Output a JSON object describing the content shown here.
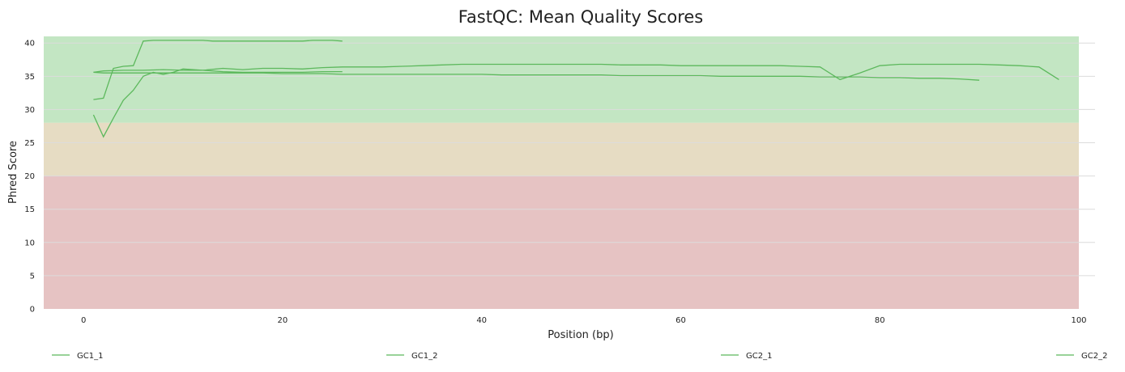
{
  "chart_data": {
    "type": "line",
    "title": "FastQC: Mean Quality Scores",
    "xlabel": "Position (bp)",
    "ylabel": "Phred Score",
    "xlim": [
      -4,
      100
    ],
    "ylim": [
      0,
      41
    ],
    "xticks": [
      0,
      20,
      40,
      60,
      80,
      100
    ],
    "yticks": [
      0,
      5,
      10,
      15,
      20,
      25,
      30,
      35,
      40
    ],
    "grid": true,
    "legend_position": "bottom",
    "line_color": "#5cb85c",
    "quality_bands": [
      {
        "from": 28,
        "to": 41,
        "color": "#c3e6c3"
      },
      {
        "from": 20,
        "to": 28,
        "color": "#e6dcc3"
      },
      {
        "from": 0,
        "to": 20,
        "color": "#e6c3c3"
      }
    ],
    "series": [
      {
        "name": "GC1_1",
        "x": [
          1,
          2,
          3,
          4,
          5,
          6,
          7,
          8,
          9,
          10,
          11,
          12,
          13,
          14,
          15,
          16,
          17,
          18,
          19,
          20,
          21,
          22,
          23,
          24,
          25,
          26
        ],
        "y": [
          31.5,
          31.7,
          36.2,
          36.5,
          36.6,
          40.3,
          40.4,
          40.4,
          40.4,
          40.4,
          40.4,
          40.4,
          40.3,
          40.3,
          40.3,
          40.3,
          40.3,
          40.3,
          40.3,
          40.3,
          40.3,
          40.3,
          40.4,
          40.4,
          40.4,
          40.3
        ]
      },
      {
        "name": "GC1_2",
        "x": [
          1,
          2,
          3,
          4,
          5,
          6,
          7,
          8,
          9,
          10,
          12,
          14,
          16,
          18,
          20,
          22,
          24,
          26
        ],
        "y": [
          29.2,
          25.9,
          28.7,
          31.4,
          32.9,
          35.0,
          35.6,
          35.3,
          35.6,
          36.1,
          35.9,
          35.7,
          35.6,
          35.6,
          35.6,
          35.6,
          35.7,
          35.7
        ]
      },
      {
        "name": "GC2_1",
        "x": [
          1,
          2,
          4,
          6,
          8,
          10,
          12,
          14,
          16,
          18,
          20,
          22,
          24,
          26,
          28,
          30,
          32,
          34,
          36,
          38,
          40,
          42,
          44,
          46,
          48,
          50,
          52,
          54,
          56,
          58,
          60,
          62,
          64,
          66,
          68,
          70,
          72,
          74,
          76,
          78,
          80,
          82,
          84,
          86,
          88,
          90
        ],
        "y": [
          35.6,
          35.5,
          35.5,
          35.5,
          35.5,
          35.5,
          35.5,
          35.5,
          35.5,
          35.5,
          35.4,
          35.4,
          35.4,
          35.3,
          35.3,
          35.3,
          35.3,
          35.3,
          35.3,
          35.3,
          35.3,
          35.2,
          35.2,
          35.2,
          35.2,
          35.2,
          35.2,
          35.1,
          35.1,
          35.1,
          35.1,
          35.1,
          35.0,
          35.0,
          35.0,
          35.0,
          35.0,
          34.9,
          34.9,
          34.9,
          34.8,
          34.8,
          34.7,
          34.7,
          34.6,
          34.4
        ]
      },
      {
        "name": "GC2_2",
        "x": [
          1,
          2,
          4,
          6,
          8,
          10,
          12,
          14,
          16,
          18,
          20,
          22,
          24,
          26,
          28,
          30,
          32,
          34,
          36,
          38,
          40,
          42,
          44,
          46,
          48,
          50,
          52,
          54,
          56,
          58,
          60,
          62,
          64,
          66,
          68,
          70,
          72,
          74,
          76,
          78,
          80,
          82,
          84,
          86,
          88,
          90,
          92,
          94,
          96,
          98
        ],
        "y": [
          35.6,
          35.8,
          35.9,
          35.9,
          36.0,
          35.9,
          35.9,
          36.2,
          36.0,
          36.2,
          36.2,
          36.1,
          36.3,
          36.4,
          36.4,
          36.4,
          36.5,
          36.6,
          36.7,
          36.8,
          36.8,
          36.8,
          36.8,
          36.8,
          36.8,
          36.8,
          36.8,
          36.7,
          36.7,
          36.7,
          36.6,
          36.6,
          36.6,
          36.6,
          36.6,
          36.6,
          36.5,
          36.4,
          34.5,
          35.5,
          36.6,
          36.8,
          36.8,
          36.8,
          36.8,
          36.8,
          36.7,
          36.6,
          36.4,
          34.5
        ]
      }
    ]
  }
}
